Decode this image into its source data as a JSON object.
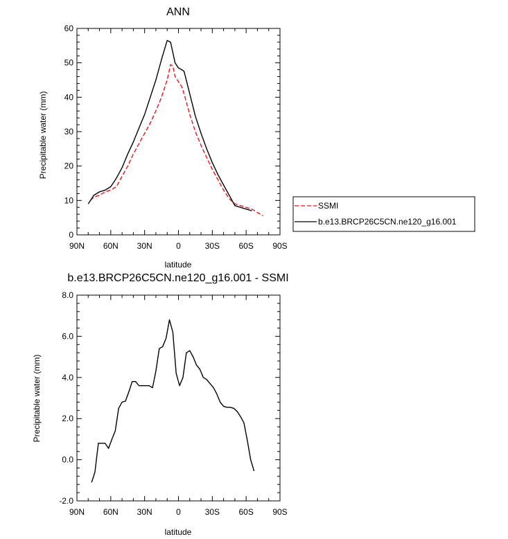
{
  "chart_data": [
    {
      "type": "line",
      "title": "ANN",
      "xlabel": "latitude",
      "ylabel": "Precipitable water (mm)",
      "xlim": [
        90,
        -90
      ],
      "ylim": [
        0,
        60
      ],
      "xticks": [
        90,
        60,
        30,
        0,
        -30,
        -60,
        -90
      ],
      "xticklabels": [
        "90N",
        "60N",
        "30N",
        "0",
        "30S",
        "60S",
        "90S"
      ],
      "yticks": [
        0,
        10,
        20,
        30,
        40,
        50,
        60
      ],
      "yticklabels": [
        "0",
        "10",
        "20",
        "30",
        "40",
        "50",
        "60"
      ],
      "legend": {
        "position": "right",
        "entries": [
          "SSMI",
          "b.e13.BRCP26C5CN.ne120_g16.001"
        ]
      },
      "series": [
        {
          "name": "SSMI",
          "color": "#e8121b",
          "dash": "dashed",
          "x": [
            78,
            75,
            70,
            65,
            60,
            55,
            50,
            45,
            40,
            35,
            30,
            25,
            20,
            15,
            10,
            7,
            5,
            3,
            0,
            -3,
            -5,
            -10,
            -15,
            -20,
            -25,
            -30,
            -35,
            -40,
            -45,
            -50,
            -55,
            -60,
            -65,
            -70,
            -75
          ],
          "y": [
            10,
            11,
            11.5,
            12.5,
            13,
            14,
            17,
            20,
            23.5,
            26.5,
            29.5,
            32.5,
            36,
            40,
            45,
            49.5,
            49,
            46,
            44.5,
            43,
            41,
            35,
            30,
            26,
            22.5,
            19,
            16,
            13,
            10.5,
            9,
            8.5,
            8,
            7.5,
            6.5,
            5.5
          ]
        },
        {
          "name": "b.e13.BRCP26C5CN.ne120_g16.001",
          "color": "#000000",
          "dash": "solid",
          "x": [
            80,
            75,
            70,
            65,
            60,
            55,
            50,
            45,
            40,
            35,
            30,
            25,
            20,
            15,
            10,
            7,
            5,
            3,
            0,
            -3,
            -5,
            -10,
            -15,
            -20,
            -25,
            -30,
            -35,
            -40,
            -45,
            -50,
            -55,
            -60,
            -65
          ],
          "y": [
            9,
            11.5,
            12.5,
            13,
            14,
            16.5,
            19.5,
            23.5,
            27,
            31,
            35,
            40,
            45,
            51,
            56.5,
            56,
            53,
            50,
            48.5,
            48,
            47.5,
            41,
            34.5,
            29.5,
            25,
            21,
            17.5,
            14.5,
            11.5,
            8.5,
            8,
            7.5,
            7
          ]
        }
      ]
    },
    {
      "type": "line",
      "title": "b.e13.BRCP26C5CN.ne120_g16.001 - SSMI",
      "xlabel": "latitude",
      "ylabel": "Precipitable water (mm)",
      "xlim": [
        90,
        -90
      ],
      "ylim": [
        -2,
        8
      ],
      "xticks": [
        90,
        60,
        30,
        0,
        -30,
        -60,
        -90
      ],
      "xticklabels": [
        "90N",
        "60N",
        "30N",
        "0",
        "30S",
        "60S",
        "90S"
      ],
      "yticks": [
        -2,
        0,
        2,
        4,
        6,
        8
      ],
      "yticklabels": [
        "-2.0",
        "0.0",
        "2.0",
        "4.0",
        "6.0",
        "8.0"
      ],
      "series": [
        {
          "color": "#000000",
          "dash": "solid",
          "x": [
            77,
            74,
            71,
            68,
            65,
            62,
            59,
            56,
            53,
            50,
            47,
            44,
            41,
            38,
            35,
            32,
            29,
            26,
            23,
            20,
            17,
            14,
            11,
            8,
            5,
            2,
            -1,
            -4,
            -7,
            -10,
            -13,
            -16,
            -19,
            -22,
            -25,
            -28,
            -31,
            -34,
            -37,
            -40,
            -43,
            -46,
            -49,
            -52,
            -55,
            -58,
            -61,
            -64,
            -67
          ],
          "y": [
            -1.1,
            -0.6,
            0.8,
            0.8,
            0.8,
            0.55,
            1.0,
            1.4,
            2.5,
            2.8,
            2.85,
            3.3,
            3.8,
            3.8,
            3.6,
            3.6,
            3.6,
            3.6,
            3.5,
            4.3,
            5.4,
            5.5,
            5.9,
            6.8,
            6.2,
            4.2,
            3.6,
            4.0,
            5.2,
            5.3,
            5.0,
            4.6,
            4.4,
            4.0,
            3.9,
            3.7,
            3.5,
            3.2,
            2.8,
            2.6,
            2.55,
            2.55,
            2.5,
            2.35,
            2.1,
            1.8,
            0.95,
            0.0,
            -0.55
          ]
        }
      ]
    }
  ]
}
